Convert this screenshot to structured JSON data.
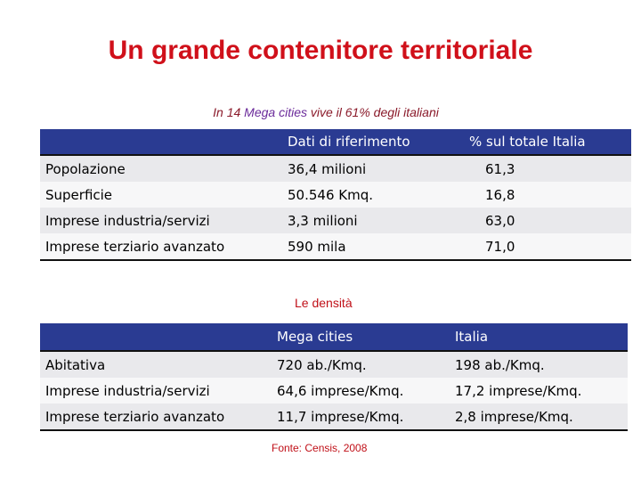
{
  "title": "Un grande contenitore territoriale",
  "subtitle": {
    "part1": "In 14",
    "part2": "Mega cities",
    "part3": "vive il 61% degli italiani"
  },
  "table1": {
    "headers": [
      "",
      "Dati di riferimento",
      "% sul totale Italia"
    ],
    "rows": [
      [
        "Popolazione",
        "36,4 milioni",
        "61,3"
      ],
      [
        "Superficie",
        "50.546 Kmq.",
        "16,8"
      ],
      [
        "Imprese industria/servizi",
        "3,3 milioni",
        "63,0"
      ],
      [
        "Imprese terziario avanzato",
        "590 mila",
        "71,0"
      ]
    ]
  },
  "density_label": "Le densità",
  "table2": {
    "headers": [
      "",
      "Mega cities",
      "Italia"
    ],
    "rows": [
      [
        "Abitativa",
        "720 ab./Kmq.",
        "198 ab./Kmq."
      ],
      [
        "Imprese industria/servizi",
        "64,6 imprese/Kmq.",
        "17,2 imprese/Kmq."
      ],
      [
        "Imprese terziario avanzato",
        "11,7 imprese/Kmq.",
        "2,8 imprese/Kmq."
      ]
    ]
  },
  "source": "Fonte: Censis, 2008",
  "colors": {
    "title": "#d0101a",
    "header_bg": "#2a3b92",
    "row_odd": "#e9e9ec",
    "row_even": "#f7f7f8"
  }
}
